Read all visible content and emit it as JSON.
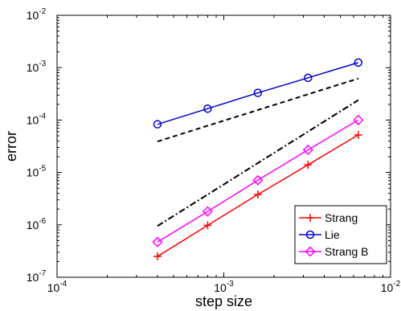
{
  "chart_data": {
    "type": "line",
    "xscale": "log",
    "yscale": "log",
    "xlabel": "step size",
    "ylabel": "error",
    "xlim": [
      0.0001,
      0.01
    ],
    "ylim": [
      1e-07,
      0.01
    ],
    "x_ticks": [
      {
        "value": 0.0001,
        "base": "10",
        "exp": "-4"
      },
      {
        "value": 0.001,
        "base": "10",
        "exp": "-3"
      },
      {
        "value": 0.01,
        "base": "10",
        "exp": "-2"
      }
    ],
    "y_ticks": [
      {
        "value": 1e-07,
        "base": "10",
        "exp": "-7"
      },
      {
        "value": 1e-06,
        "base": "10",
        "exp": "-6"
      },
      {
        "value": 1e-05,
        "base": "10",
        "exp": "-5"
      },
      {
        "value": 0.0001,
        "base": "10",
        "exp": "-4"
      },
      {
        "value": 0.001,
        "base": "10",
        "exp": "-3"
      },
      {
        "value": 0.01,
        "base": "10",
        "exp": "-2"
      }
    ],
    "grid": false,
    "legend_position": "bottom-right",
    "series": [
      {
        "name": "Strang",
        "color": "#ff0000",
        "marker": "plus",
        "x": [
          0.0004,
          0.0008,
          0.0016,
          0.0032,
          0.0064
        ],
        "y": [
          2.5e-07,
          9.8e-07,
          3.8e-06,
          1.4e-05,
          5.2e-05
        ]
      },
      {
        "name": "Lie",
        "color": "#0000cc",
        "marker": "circle",
        "x": [
          0.0004,
          0.0008,
          0.0016,
          0.0032,
          0.0064
        ],
        "y": [
          8.3e-05,
          0.000165,
          0.00033,
          0.00064,
          0.00125
        ]
      },
      {
        "name": "Strang B",
        "color": "#ff00ff",
        "marker": "diamond",
        "x": [
          0.0004,
          0.0008,
          0.0016,
          0.0032,
          0.0064
        ],
        "y": [
          4.7e-07,
          1.8e-06,
          7.1e-06,
          2.7e-05,
          0.0001
        ]
      }
    ],
    "reference_lines": [
      {
        "style": "dashed",
        "color": "#000000",
        "x": [
          0.0004,
          0.0064
        ],
        "y": [
          3.9e-05,
          0.00062
        ]
      },
      {
        "style": "dashdot",
        "color": "#000000",
        "x": [
          0.0004,
          0.0064
        ],
        "y": [
          9.5e-07,
          0.00024
        ]
      }
    ]
  }
}
